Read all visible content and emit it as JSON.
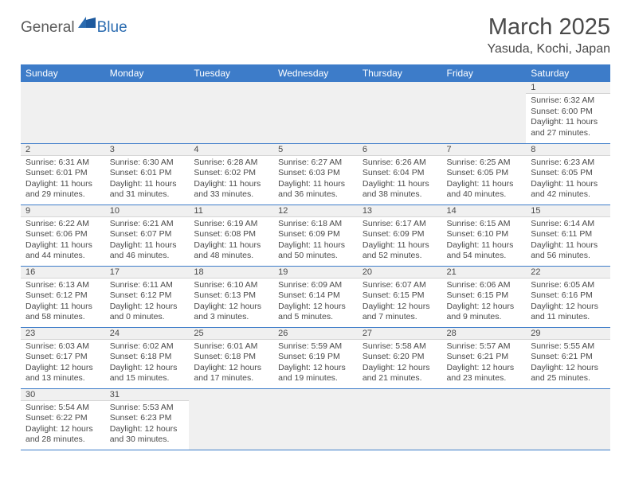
{
  "brand": {
    "part1": "General",
    "part2": "Blue"
  },
  "title": "March 2025",
  "location": "Yasuda, Kochi, Japan",
  "colors": {
    "header_bg": "#3d7cc9",
    "header_text": "#ffffff",
    "band_bg": "#f0f0f0",
    "border": "#3d7cc9",
    "text": "#4a4a4a",
    "logo_blue": "#2a6bb0"
  },
  "day_headers": [
    "Sunday",
    "Monday",
    "Tuesday",
    "Wednesday",
    "Thursday",
    "Friday",
    "Saturday"
  ],
  "weeks": [
    [
      null,
      null,
      null,
      null,
      null,
      null,
      {
        "n": "1",
        "sr": "Sunrise: 6:32 AM",
        "ss": "Sunset: 6:00 PM",
        "d1": "Daylight: 11 hours",
        "d2": "and 27 minutes."
      }
    ],
    [
      {
        "n": "2",
        "sr": "Sunrise: 6:31 AM",
        "ss": "Sunset: 6:01 PM",
        "d1": "Daylight: 11 hours",
        "d2": "and 29 minutes."
      },
      {
        "n": "3",
        "sr": "Sunrise: 6:30 AM",
        "ss": "Sunset: 6:01 PM",
        "d1": "Daylight: 11 hours",
        "d2": "and 31 minutes."
      },
      {
        "n": "4",
        "sr": "Sunrise: 6:28 AM",
        "ss": "Sunset: 6:02 PM",
        "d1": "Daylight: 11 hours",
        "d2": "and 33 minutes."
      },
      {
        "n": "5",
        "sr": "Sunrise: 6:27 AM",
        "ss": "Sunset: 6:03 PM",
        "d1": "Daylight: 11 hours",
        "d2": "and 36 minutes."
      },
      {
        "n": "6",
        "sr": "Sunrise: 6:26 AM",
        "ss": "Sunset: 6:04 PM",
        "d1": "Daylight: 11 hours",
        "d2": "and 38 minutes."
      },
      {
        "n": "7",
        "sr": "Sunrise: 6:25 AM",
        "ss": "Sunset: 6:05 PM",
        "d1": "Daylight: 11 hours",
        "d2": "and 40 minutes."
      },
      {
        "n": "8",
        "sr": "Sunrise: 6:23 AM",
        "ss": "Sunset: 6:05 PM",
        "d1": "Daylight: 11 hours",
        "d2": "and 42 minutes."
      }
    ],
    [
      {
        "n": "9",
        "sr": "Sunrise: 6:22 AM",
        "ss": "Sunset: 6:06 PM",
        "d1": "Daylight: 11 hours",
        "d2": "and 44 minutes."
      },
      {
        "n": "10",
        "sr": "Sunrise: 6:21 AM",
        "ss": "Sunset: 6:07 PM",
        "d1": "Daylight: 11 hours",
        "d2": "and 46 minutes."
      },
      {
        "n": "11",
        "sr": "Sunrise: 6:19 AM",
        "ss": "Sunset: 6:08 PM",
        "d1": "Daylight: 11 hours",
        "d2": "and 48 minutes."
      },
      {
        "n": "12",
        "sr": "Sunrise: 6:18 AM",
        "ss": "Sunset: 6:09 PM",
        "d1": "Daylight: 11 hours",
        "d2": "and 50 minutes."
      },
      {
        "n": "13",
        "sr": "Sunrise: 6:17 AM",
        "ss": "Sunset: 6:09 PM",
        "d1": "Daylight: 11 hours",
        "d2": "and 52 minutes."
      },
      {
        "n": "14",
        "sr": "Sunrise: 6:15 AM",
        "ss": "Sunset: 6:10 PM",
        "d1": "Daylight: 11 hours",
        "d2": "and 54 minutes."
      },
      {
        "n": "15",
        "sr": "Sunrise: 6:14 AM",
        "ss": "Sunset: 6:11 PM",
        "d1": "Daylight: 11 hours",
        "d2": "and 56 minutes."
      }
    ],
    [
      {
        "n": "16",
        "sr": "Sunrise: 6:13 AM",
        "ss": "Sunset: 6:12 PM",
        "d1": "Daylight: 11 hours",
        "d2": "and 58 minutes."
      },
      {
        "n": "17",
        "sr": "Sunrise: 6:11 AM",
        "ss": "Sunset: 6:12 PM",
        "d1": "Daylight: 12 hours",
        "d2": "and 0 minutes."
      },
      {
        "n": "18",
        "sr": "Sunrise: 6:10 AM",
        "ss": "Sunset: 6:13 PM",
        "d1": "Daylight: 12 hours",
        "d2": "and 3 minutes."
      },
      {
        "n": "19",
        "sr": "Sunrise: 6:09 AM",
        "ss": "Sunset: 6:14 PM",
        "d1": "Daylight: 12 hours",
        "d2": "and 5 minutes."
      },
      {
        "n": "20",
        "sr": "Sunrise: 6:07 AM",
        "ss": "Sunset: 6:15 PM",
        "d1": "Daylight: 12 hours",
        "d2": "and 7 minutes."
      },
      {
        "n": "21",
        "sr": "Sunrise: 6:06 AM",
        "ss": "Sunset: 6:15 PM",
        "d1": "Daylight: 12 hours",
        "d2": "and 9 minutes."
      },
      {
        "n": "22",
        "sr": "Sunrise: 6:05 AM",
        "ss": "Sunset: 6:16 PM",
        "d1": "Daylight: 12 hours",
        "d2": "and 11 minutes."
      }
    ],
    [
      {
        "n": "23",
        "sr": "Sunrise: 6:03 AM",
        "ss": "Sunset: 6:17 PM",
        "d1": "Daylight: 12 hours",
        "d2": "and 13 minutes."
      },
      {
        "n": "24",
        "sr": "Sunrise: 6:02 AM",
        "ss": "Sunset: 6:18 PM",
        "d1": "Daylight: 12 hours",
        "d2": "and 15 minutes."
      },
      {
        "n": "25",
        "sr": "Sunrise: 6:01 AM",
        "ss": "Sunset: 6:18 PM",
        "d1": "Daylight: 12 hours",
        "d2": "and 17 minutes."
      },
      {
        "n": "26",
        "sr": "Sunrise: 5:59 AM",
        "ss": "Sunset: 6:19 PM",
        "d1": "Daylight: 12 hours",
        "d2": "and 19 minutes."
      },
      {
        "n": "27",
        "sr": "Sunrise: 5:58 AM",
        "ss": "Sunset: 6:20 PM",
        "d1": "Daylight: 12 hours",
        "d2": "and 21 minutes."
      },
      {
        "n": "28",
        "sr": "Sunrise: 5:57 AM",
        "ss": "Sunset: 6:21 PM",
        "d1": "Daylight: 12 hours",
        "d2": "and 23 minutes."
      },
      {
        "n": "29",
        "sr": "Sunrise: 5:55 AM",
        "ss": "Sunset: 6:21 PM",
        "d1": "Daylight: 12 hours",
        "d2": "and 25 minutes."
      }
    ],
    [
      {
        "n": "30",
        "sr": "Sunrise: 5:54 AM",
        "ss": "Sunset: 6:22 PM",
        "d1": "Daylight: 12 hours",
        "d2": "and 28 minutes."
      },
      {
        "n": "31",
        "sr": "Sunrise: 5:53 AM",
        "ss": "Sunset: 6:23 PM",
        "d1": "Daylight: 12 hours",
        "d2": "and 30 minutes."
      },
      null,
      null,
      null,
      null,
      null
    ]
  ]
}
